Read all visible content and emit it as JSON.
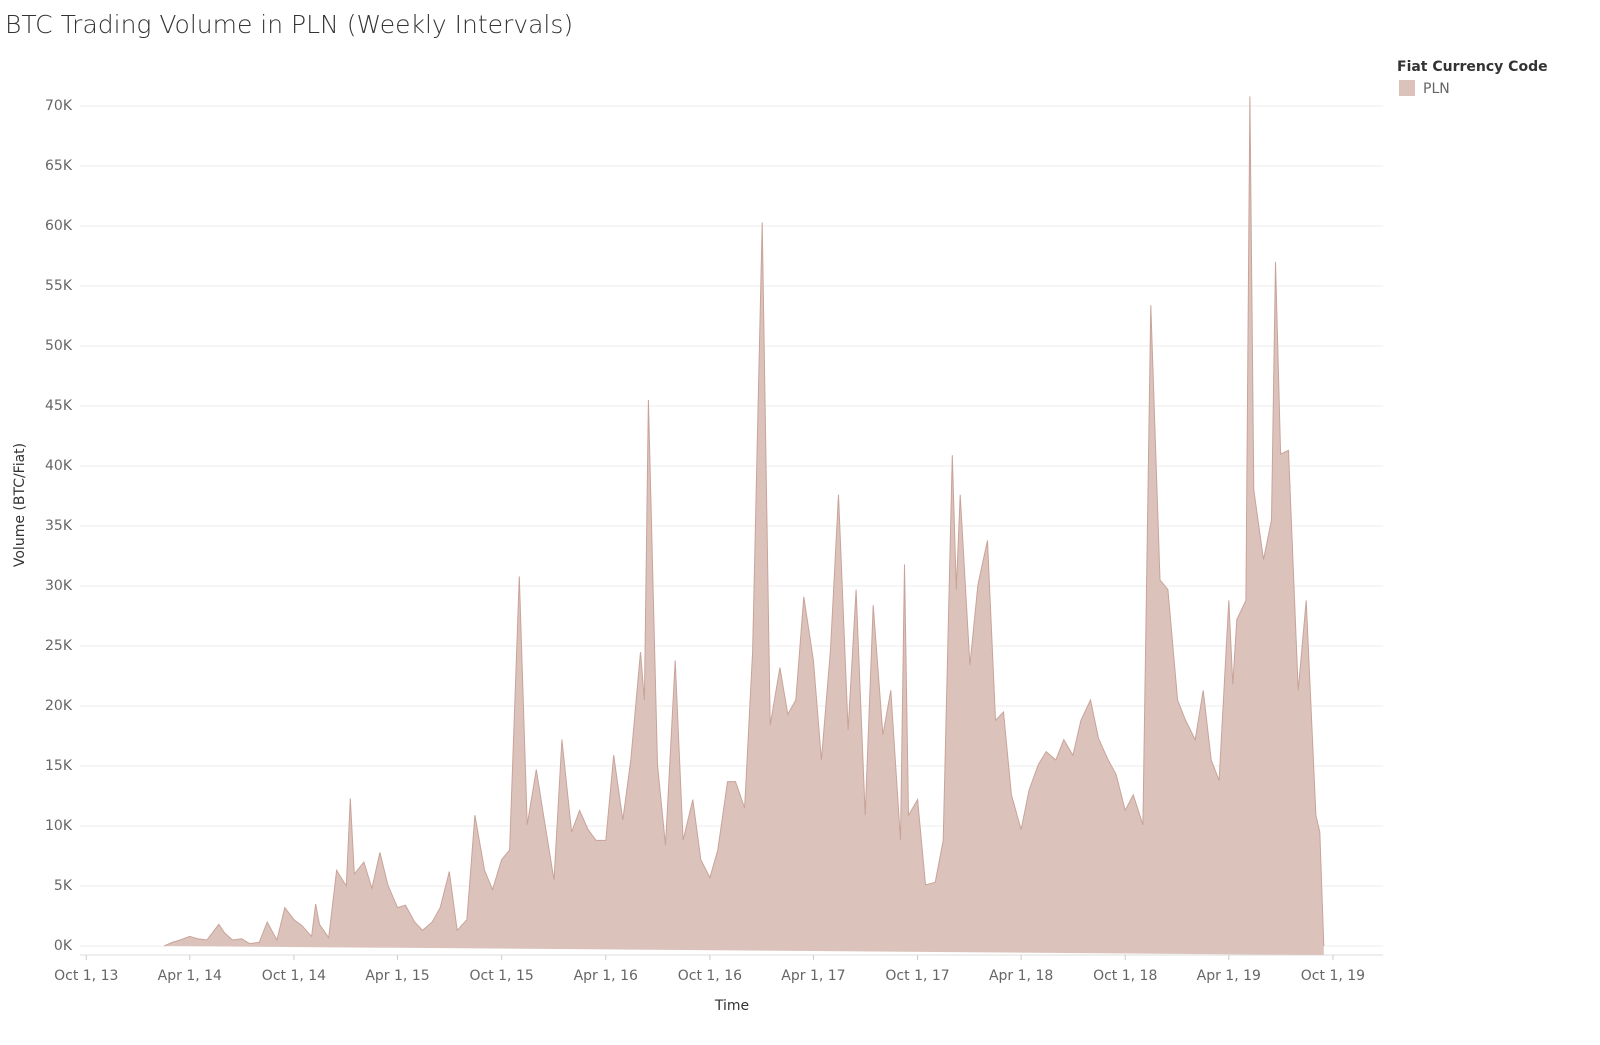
{
  "chart_data": {
    "type": "area",
    "title": "BTC Trading Volume in PLN (Weekly Intervals)",
    "x_label": "Time",
    "y_label": "Volume (BTC/Fiat)",
    "legend_title": "Fiat Currency Code",
    "legend_position": "top-right",
    "grid": true,
    "xlim": [
      "2013-09-20",
      "2019-12-28"
    ],
    "xticks": [
      {
        "value": "2013-10-01",
        "label": "Oct 1, 13"
      },
      {
        "value": "2014-04-01",
        "label": "Apr 1, 14"
      },
      {
        "value": "2014-10-01",
        "label": "Oct 1, 14"
      },
      {
        "value": "2015-04-01",
        "label": "Apr 1, 15"
      },
      {
        "value": "2015-10-01",
        "label": "Oct 1, 15"
      },
      {
        "value": "2016-04-01",
        "label": "Apr 1, 16"
      },
      {
        "value": "2016-10-01",
        "label": "Oct 1, 16"
      },
      {
        "value": "2017-04-01",
        "label": "Apr 1, 17"
      },
      {
        "value": "2017-10-01",
        "label": "Oct 1, 17"
      },
      {
        "value": "2018-04-01",
        "label": "Apr 1, 18"
      },
      {
        "value": "2018-10-01",
        "label": "Oct 1, 18"
      },
      {
        "value": "2019-04-01",
        "label": "Apr 1, 19"
      },
      {
        "value": "2019-10-01",
        "label": "Oct 1, 19"
      }
    ],
    "ylim": [
      -750,
      74250
    ],
    "yticks": [
      {
        "value": 0,
        "label": "0K"
      },
      {
        "value": 5000,
        "label": "5K"
      },
      {
        "value": 10000,
        "label": "10K"
      },
      {
        "value": 15000,
        "label": "15K"
      },
      {
        "value": 20000,
        "label": "20K"
      },
      {
        "value": 25000,
        "label": "25K"
      },
      {
        "value": 30000,
        "label": "30K"
      },
      {
        "value": 35000,
        "label": "35K"
      },
      {
        "value": 40000,
        "label": "40K"
      },
      {
        "value": 45000,
        "label": "45K"
      },
      {
        "value": 50000,
        "label": "50K"
      },
      {
        "value": 55000,
        "label": "55K"
      },
      {
        "value": 60000,
        "label": "60K"
      },
      {
        "value": 65000,
        "label": "65K"
      },
      {
        "value": 70000,
        "label": "70K"
      }
    ],
    "x": [
      "2014-02-15",
      "2014-03-01",
      "2014-03-15",
      "2014-04-01",
      "2014-04-15",
      "2014-05-01",
      "2014-05-22",
      "2014-06-01",
      "2014-06-15",
      "2014-07-01",
      "2014-07-15",
      "2014-08-01",
      "2014-08-15",
      "2014-09-01",
      "2014-09-15",
      "2014-10-01",
      "2014-10-15",
      "2014-11-01",
      "2014-11-08",
      "2014-11-15",
      "2014-12-01",
      "2014-12-15",
      "2015-01-01",
      "2015-01-08",
      "2015-01-15",
      "2015-02-01",
      "2015-02-15",
      "2015-03-01",
      "2015-03-15",
      "2015-04-01",
      "2015-04-15",
      "2015-05-01",
      "2015-05-15",
      "2015-06-01",
      "2015-06-15",
      "2015-07-01",
      "2015-07-15",
      "2015-08-01",
      "2015-08-15",
      "2015-09-01",
      "2015-09-15",
      "2015-10-01",
      "2015-10-15",
      "2015-11-01",
      "2015-11-15",
      "2015-12-01",
      "2015-12-15",
      "2016-01-01",
      "2016-01-15",
      "2016-02-01",
      "2016-02-15",
      "2016-03-01",
      "2016-03-15",
      "2016-04-01",
      "2016-04-15",
      "2016-05-01",
      "2016-05-15",
      "2016-06-01",
      "2016-06-08",
      "2016-06-15",
      "2016-07-01",
      "2016-07-15",
      "2016-08-01",
      "2016-08-15",
      "2016-09-01",
      "2016-09-15",
      "2016-10-01",
      "2016-10-15",
      "2016-11-01",
      "2016-11-15",
      "2016-12-01",
      "2016-12-15",
      "2017-01-01",
      "2017-01-15",
      "2017-02-01",
      "2017-02-15",
      "2017-03-01",
      "2017-03-15",
      "2017-04-01",
      "2017-04-15",
      "2017-05-01",
      "2017-05-15",
      "2017-06-01",
      "2017-06-15",
      "2017-07-01",
      "2017-07-15",
      "2017-08-01",
      "2017-08-15",
      "2017-09-01",
      "2017-09-08",
      "2017-09-15",
      "2017-10-01",
      "2017-10-15",
      "2017-11-01",
      "2017-11-15",
      "2017-12-01",
      "2017-12-08",
      "2017-12-15",
      "2018-01-01",
      "2018-01-15",
      "2018-02-01",
      "2018-02-15",
      "2018-03-01",
      "2018-03-15",
      "2018-04-01",
      "2018-04-15",
      "2018-05-01",
      "2018-05-15",
      "2018-06-01",
      "2018-06-15",
      "2018-07-01",
      "2018-07-15",
      "2018-08-01",
      "2018-08-15",
      "2018-09-01",
      "2018-09-15",
      "2018-10-01",
      "2018-10-15",
      "2018-11-01",
      "2018-11-15",
      "2018-12-01",
      "2018-12-15",
      "2019-01-01",
      "2019-01-15",
      "2019-02-01",
      "2019-02-15",
      "2019-03-01",
      "2019-03-15",
      "2019-04-01",
      "2019-04-08",
      "2019-04-15",
      "2019-05-01",
      "2019-05-08",
      "2019-05-15",
      "2019-06-01",
      "2019-06-15",
      "2019-06-22",
      "2019-07-01",
      "2019-07-15",
      "2019-08-01",
      "2019-08-15",
      "2019-09-01",
      "2019-09-08",
      "2019-09-15"
    ],
    "series": [
      {
        "name": "PLN",
        "color": "#dbc3bc",
        "line_color": "#c9a399",
        "values": [
          0,
          300,
          500,
          800,
          600,
          500,
          1800,
          1100,
          500,
          600,
          200,
          300,
          2000,
          500,
          3200,
          2200,
          1700,
          800,
          3500,
          1800,
          700,
          6300,
          5000,
          12300,
          6000,
          7000,
          4800,
          7800,
          5100,
          3200,
          3400,
          2000,
          1300,
          2000,
          3200,
          6200,
          1300,
          2200,
          10900,
          6300,
          4700,
          7200,
          8000,
          30800,
          10100,
          14700,
          10500,
          5500,
          17200,
          9500,
          11300,
          9700,
          8800,
          8800,
          15900,
          10500,
          15500,
          24500,
          20500,
          45500,
          15100,
          8400,
          23800,
          8800,
          12200,
          7200,
          5700,
          8000,
          13700,
          13700,
          11500,
          24500,
          60300,
          18400,
          23200,
          19300,
          20500,
          29100,
          23800,
          15500,
          24700,
          37600,
          18000,
          29700,
          10900,
          28400,
          17600,
          21300,
          8800,
          31800,
          10900,
          12200,
          5100,
          5300,
          8800,
          40900,
          29700,
          37600,
          23400,
          30100,
          33800,
          18800,
          19500,
          12600,
          9700,
          13000,
          15100,
          16200,
          15500,
          17200,
          15900,
          18800,
          20500,
          17300,
          15500,
          14300,
          11300,
          12600,
          10100,
          53400,
          30500,
          29700,
          20500,
          18800,
          17200,
          21300,
          15500,
          13800,
          28800,
          21800,
          27200,
          28800,
          70800,
          38000,
          32200,
          35500,
          57000,
          41000,
          41300,
          21300,
          28800,
          10900,
          9500,
          0
        ]
      }
    ]
  }
}
